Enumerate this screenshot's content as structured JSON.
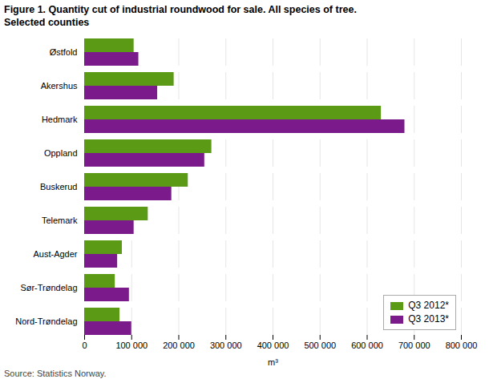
{
  "chart_data": {
    "type": "bar",
    "orientation": "horizontal",
    "title": "Figure 1. Quantity cut of industrial roundwood for sale. All species of tree.",
    "subtitle": "Selected counties",
    "categories": [
      "Østfold",
      "Akershus",
      "Hedmark",
      "Oppland",
      "Buskerud",
      "Telemark",
      "Aust-Agder",
      "Sør-Trøndelag",
      "Nord-Trøndelag"
    ],
    "series": [
      {
        "name": "Q3 2012*",
        "color": "#5a9a14",
        "values": [
          105000,
          190000,
          630000,
          270000,
          220000,
          135000,
          80000,
          65000,
          75000
        ]
      },
      {
        "name": "Q3 2013*",
        "color": "#7b1a8a",
        "values": [
          115000,
          155000,
          680000,
          255000,
          185000,
          105000,
          70000,
          95000,
          100000
        ]
      }
    ],
    "xlabel": "m³",
    "xlim": [
      0,
      800000
    ],
    "xticks": [
      0,
      {
        "value": 100000,
        "label": "100 000"
      },
      {
        "value": 200000,
        "label": "200 000"
      },
      {
        "value": 300000,
        "label": "300 000"
      },
      {
        "value": 400000,
        "label": "400 000"
      },
      {
        "value": 500000,
        "label": "500 000"
      },
      {
        "value": 600000,
        "label": "600 000"
      },
      {
        "value": 700000,
        "label": "700 000"
      },
      {
        "value": 800000,
        "label": "800 000"
      }
    ],
    "grid": true,
    "legend": "lower right",
    "source": "Source: Statistics Norway."
  }
}
